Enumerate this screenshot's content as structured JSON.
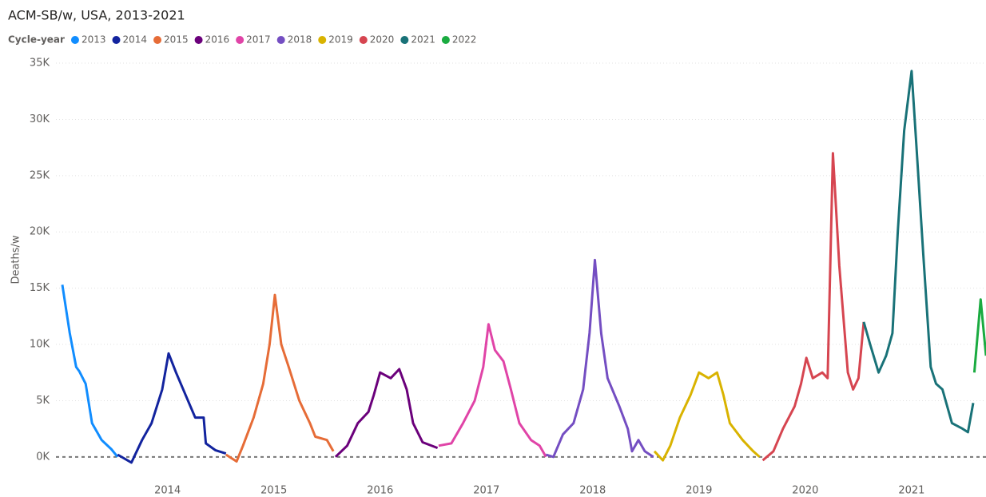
{
  "chart_data": {
    "type": "line",
    "title": "ACM-SB/w, USA, 2013-2021",
    "legend_title": "Cycle-year",
    "y_label": "Deaths/w",
    "xlim": [
      2012.95,
      2021.7
    ],
    "xticks": [
      2014,
      2015,
      2016,
      2017,
      2018,
      2019,
      2020,
      2021
    ],
    "ylim": [
      -2000,
      35500
    ],
    "yticks": [
      {
        "value": 0,
        "label": "0K"
      },
      {
        "value": 5000,
        "label": "5K"
      },
      {
        "value": 10000,
        "label": "10K"
      },
      {
        "value": 15000,
        "label": "15K"
      },
      {
        "value": 20000,
        "label": "20K"
      },
      {
        "value": 25000,
        "label": "25K"
      },
      {
        "value": 30000,
        "label": "30K"
      },
      {
        "value": 35000,
        "label": "35K"
      }
    ],
    "grid": true,
    "series": [
      {
        "name": "2013",
        "color": "#118DFF",
        "x": [
          2013.01,
          2013.08,
          2013.14,
          2013.17,
          2013.23,
          2013.29,
          2013.38,
          2013.47,
          2013.53
        ],
        "values": [
          15300,
          11000,
          8000,
          7600,
          6500,
          3000,
          1500,
          700,
          0
        ]
      },
      {
        "name": "2014",
        "color": "#12239E",
        "x": [
          2013.53,
          2013.66,
          2013.76,
          2013.85,
          2013.95,
          2014.01,
          2014.08,
          2014.17,
          2014.26,
          2014.34,
          2014.36,
          2014.45,
          2014.55
        ],
        "values": [
          200,
          -500,
          1500,
          3000,
          6000,
          9200,
          7500,
          5500,
          3500,
          3500,
          1200,
          600,
          300
        ]
      },
      {
        "name": "2015",
        "color": "#E66C37",
        "x": [
          2014.55,
          2014.65,
          2014.71,
          2014.81,
          2014.9,
          2014.96,
          2015.01,
          2015.07,
          2015.14,
          2015.24,
          2015.34,
          2015.39,
          2015.5,
          2015.56
        ],
        "values": [
          200,
          -400,
          1000,
          3500,
          6500,
          10000,
          14400,
          10000,
          8000,
          5000,
          3000,
          1800,
          1500,
          500
        ]
      },
      {
        "name": "2016",
        "color": "#6B007B",
        "x": [
          2015.58,
          2015.69,
          2015.79,
          2015.89,
          2015.94,
          2016.0,
          2016.1,
          2016.18,
          2016.25,
          2016.31,
          2016.4,
          2016.54
        ],
        "values": [
          0,
          1000,
          3000,
          4000,
          5500,
          7500,
          7000,
          7800,
          6000,
          3000,
          1300,
          800
        ]
      },
      {
        "name": "2017",
        "color": "#E044A7",
        "x": [
          2016.55,
          2016.67,
          2016.78,
          2016.89,
          2016.97,
          2017.02,
          2017.08,
          2017.16,
          2017.23,
          2017.31,
          2017.42,
          2017.5,
          2017.56
        ],
        "values": [
          1000,
          1200,
          3000,
          5000,
          8000,
          11800,
          9500,
          8500,
          6000,
          3000,
          1500,
          1000,
          0
        ]
      },
      {
        "name": "2018",
        "color": "#744EC2",
        "x": [
          2017.56,
          2017.63,
          2017.72,
          2017.82,
          2017.91,
          2017.97,
          2018.02,
          2018.08,
          2018.14,
          2018.25,
          2018.33,
          2018.37,
          2018.43,
          2018.49,
          2018.57
        ],
        "values": [
          200,
          0,
          2000,
          3000,
          6000,
          11000,
          17500,
          11000,
          7000,
          4500,
          2500,
          500,
          1500,
          500,
          0
        ]
      },
      {
        "name": "2019",
        "color": "#D9B300",
        "x": [
          2018.58,
          2018.66,
          2018.73,
          2018.82,
          2018.92,
          2019.0,
          2019.09,
          2019.17,
          2019.23,
          2019.29,
          2019.41,
          2019.51,
          2019.57
        ],
        "values": [
          500,
          -300,
          1000,
          3500,
          5500,
          7500,
          7000,
          7500,
          5500,
          3000,
          1500,
          500,
          0
        ]
      },
      {
        "name": "2020",
        "color": "#D64550",
        "x": [
          2019.6,
          2019.7,
          2019.79,
          2019.9,
          2019.96,
          2020.01,
          2020.07,
          2020.16,
          2020.21,
          2020.26,
          2020.32,
          2020.4,
          2020.45,
          2020.5,
          2020.55
        ],
        "values": [
          -300,
          500,
          2500,
          4500,
          6500,
          8800,
          7000,
          7500,
          7000,
          27000,
          17000,
          7500,
          6000,
          7000,
          12000
        ]
      },
      {
        "name": "2021",
        "color": "#197278",
        "x": [
          2020.55,
          2020.61,
          2020.69,
          2020.76,
          2020.82,
          2020.87,
          2020.93,
          2021.0,
          2021.05,
          2021.11,
          2021.18,
          2021.23,
          2021.29,
          2021.38,
          2021.48,
          2021.53,
          2021.58
        ],
        "values": [
          12000,
          10000,
          7500,
          9000,
          11000,
          20000,
          29000,
          34300,
          27000,
          18000,
          8000,
          6500,
          6000,
          3000,
          2500,
          2200,
          4800
        ]
      },
      {
        "name": "2022",
        "color": "#1AAB40",
        "x": [
          2021.59,
          2021.65,
          2021.7
        ],
        "values": [
          7500,
          14000,
          9000
        ]
      }
    ]
  }
}
